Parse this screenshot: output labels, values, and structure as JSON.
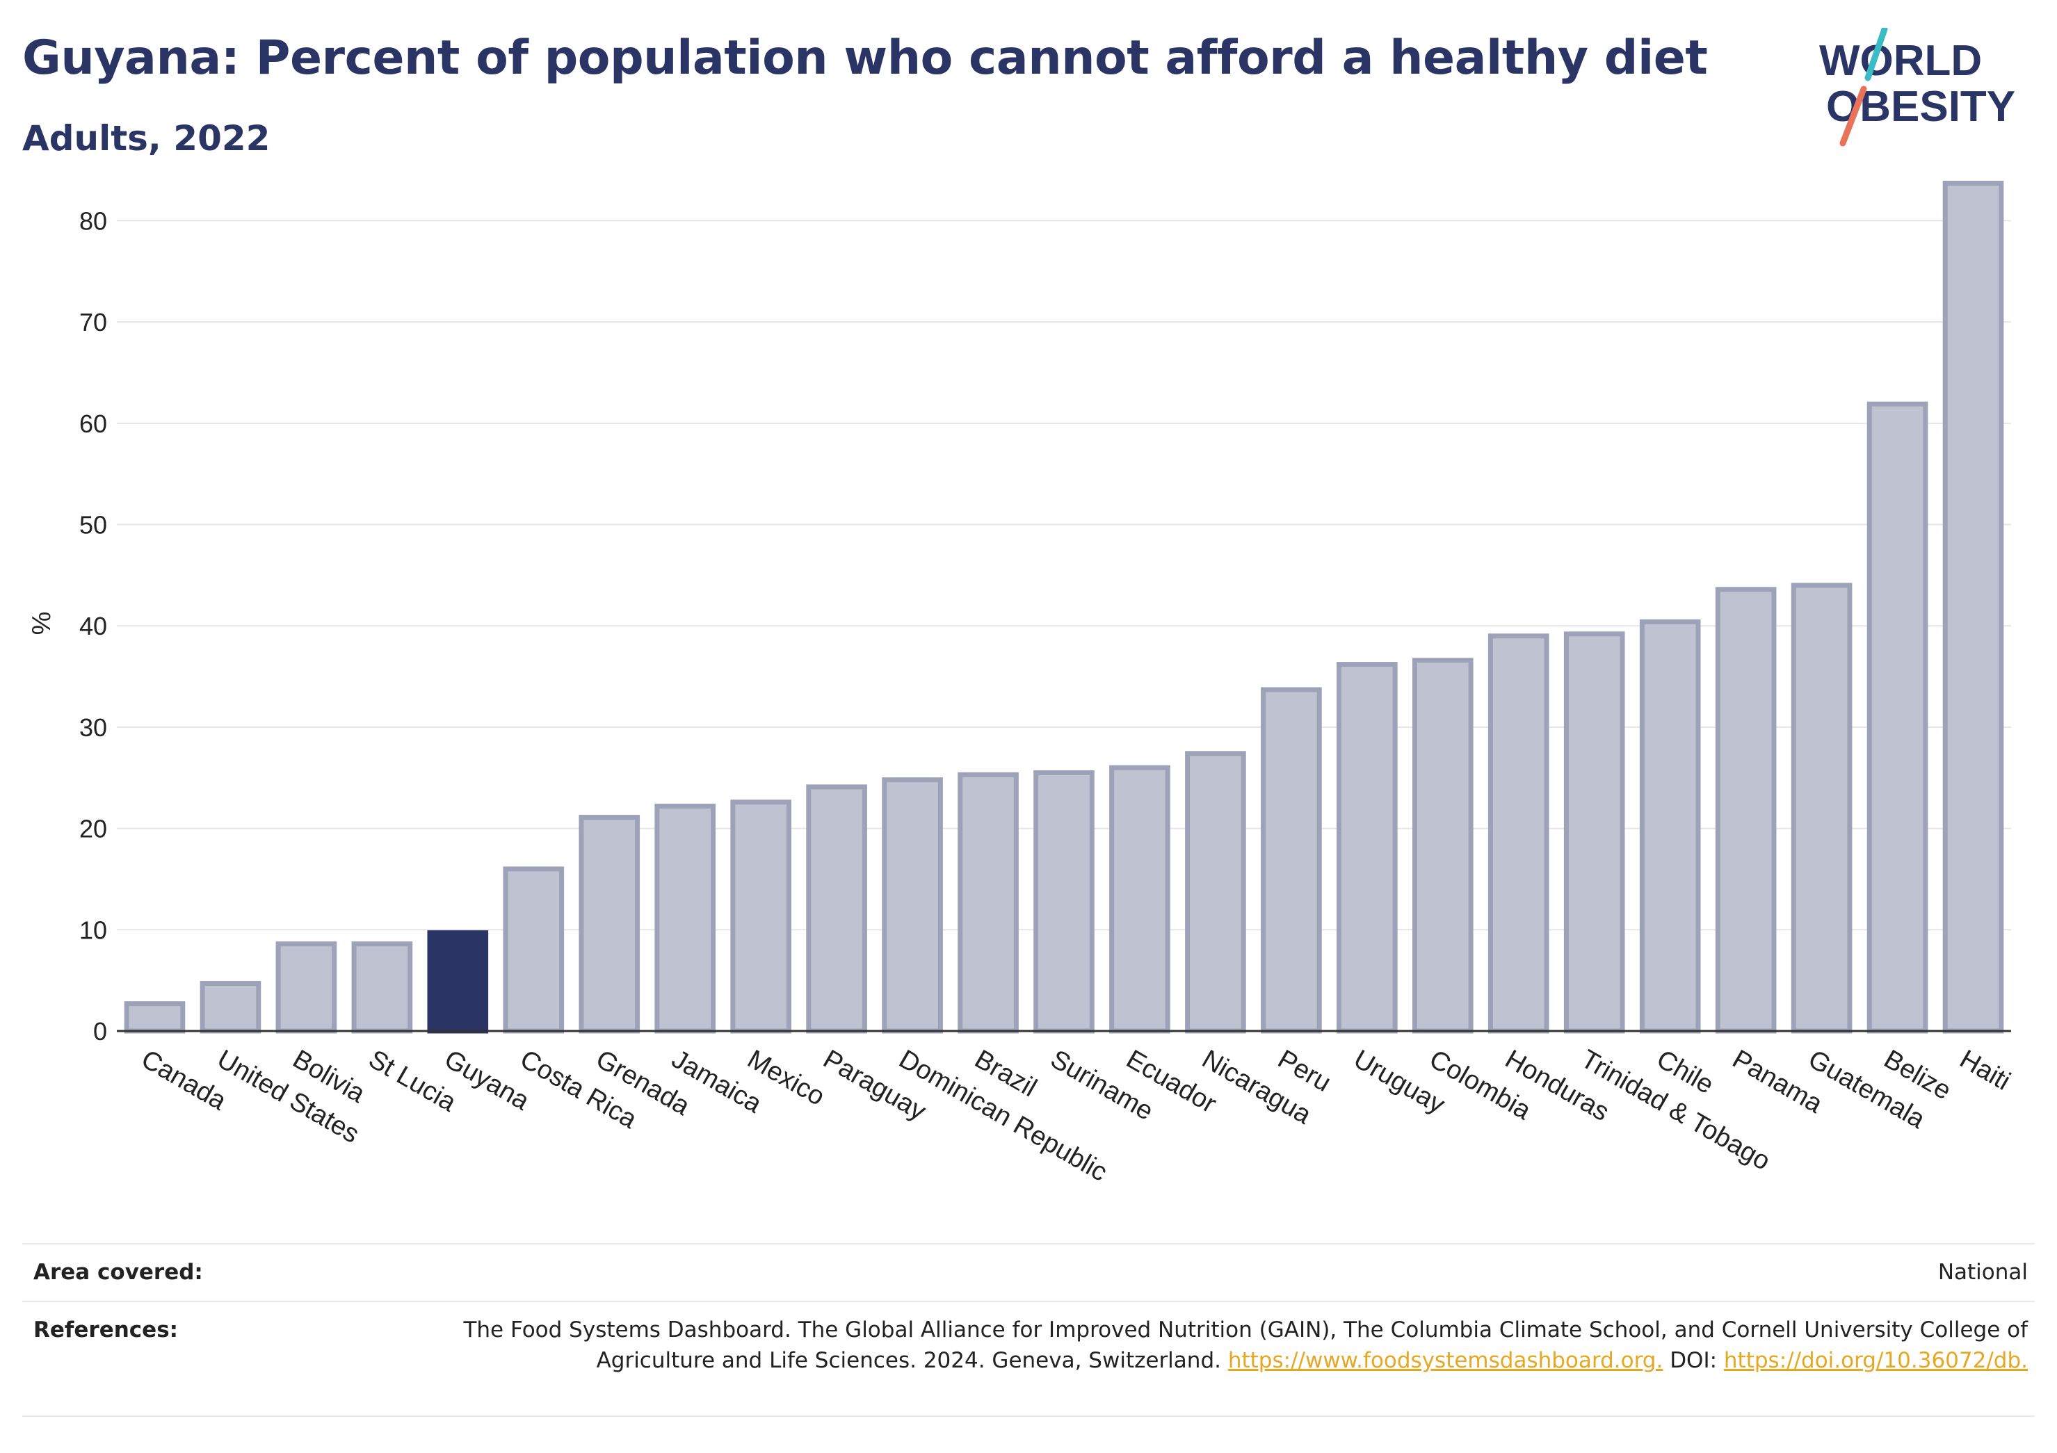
{
  "header": {
    "title": "Guyana: Percent of population who cannot afford a healthy diet",
    "subtitle": "Adults, 2022"
  },
  "logo": {
    "line1": "WORLD",
    "line2": "OBESITY",
    "colors": {
      "text": "#2b3565",
      "slash_top": "#3bbcc4",
      "slash_bottom": "#e8735a"
    }
  },
  "chart_data": {
    "type": "bar",
    "title": "Guyana: Percent of population who cannot afford a healthy diet",
    "subtitle": "Adults, 2022",
    "xlabel": "",
    "ylabel": "%",
    "ylim": [
      0,
      86
    ],
    "yticks": [
      0,
      10,
      20,
      30,
      40,
      50,
      60,
      70,
      80
    ],
    "grid": true,
    "categories": [
      "Canada",
      "United States",
      "Bolivia",
      "St Lucia",
      "Guyana",
      "Costa Rica",
      "Grenada",
      "Jamaica",
      "Mexico",
      "Paraguay",
      "Dominican Republic",
      "Brazil",
      "Suriname",
      "Ecuador",
      "Nicaragua",
      "Peru",
      "Uruguay",
      "Colombia",
      "Honduras",
      "Trinidad & Tobago",
      "Chile",
      "Panama",
      "Guatemala",
      "Belize",
      "Haiti"
    ],
    "values": [
      2.7,
      4.7,
      8.6,
      8.6,
      9.7,
      16.0,
      21.1,
      22.2,
      22.6,
      24.1,
      24.8,
      25.3,
      25.5,
      26.0,
      27.4,
      33.7,
      36.2,
      36.6,
      39.0,
      39.2,
      40.4,
      43.6,
      44.0,
      61.9,
      83.7
    ],
    "highlight": "Guyana",
    "colors": {
      "bar": "#bfc2d0",
      "bar_border": "#9ea2b8",
      "highlight": "#2b3565",
      "grid": "#e6e6ea",
      "axis": "#333333"
    }
  },
  "info": {
    "area_label": "Area covered:",
    "area_value": "National",
    "references_label": "References:",
    "references_text": "The Food Systems Dashboard. The Global Alliance for Improved Nutrition (GAIN), The Columbia Climate School, and Cornell University College of Agriculture and Life Sciences. 2024. Geneva, Switzerland.",
    "references_link1": "https://www.foodsystemsdashboard.org.",
    "references_doi_label": "DOI:",
    "references_link2": "https://doi.org/10.36072/db."
  }
}
